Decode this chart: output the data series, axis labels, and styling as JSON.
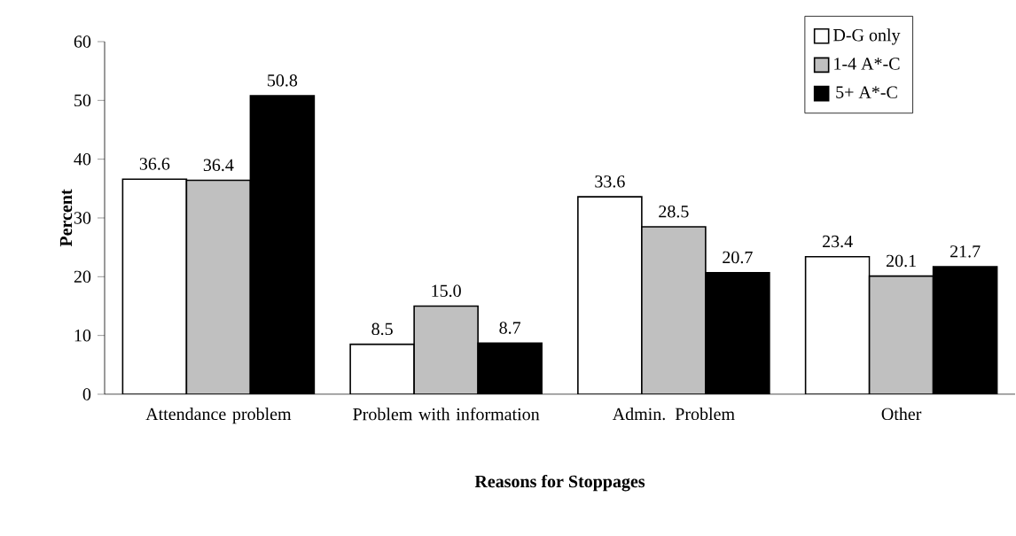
{
  "chart_data": {
    "type": "bar",
    "xlabel": "Reasons for Stoppages",
    "ylabel": "Percent",
    "categories": [
      "Attendance problem",
      "Problem with information",
      "Admin. Problem",
      "Other"
    ],
    "series": [
      {
        "name": "D-G only",
        "color": "#ffffff",
        "values": [
          36.6,
          8.5,
          33.6,
          23.4
        ],
        "value_labels": [
          "36.6",
          "8.5",
          "33.6",
          "23.4"
        ]
      },
      {
        "name": "1-4 A*-C",
        "color": "#c0c0c0",
        "values": [
          36.4,
          15.0,
          28.5,
          20.1
        ],
        "value_labels": [
          "36.4",
          "15.0",
          "28.5",
          "20.1"
        ]
      },
      {
        "name": "5+ A*-C",
        "color": "#000000",
        "values": [
          50.8,
          8.7,
          20.7,
          21.7
        ],
        "value_labels": [
          "50.8",
          "8.7",
          "20.7",
          "21.7"
        ]
      }
    ],
    "ylim": [
      0,
      60
    ],
    "yticks": [
      0,
      10,
      20,
      30,
      40,
      50,
      60
    ],
    "legend": "top right"
  }
}
